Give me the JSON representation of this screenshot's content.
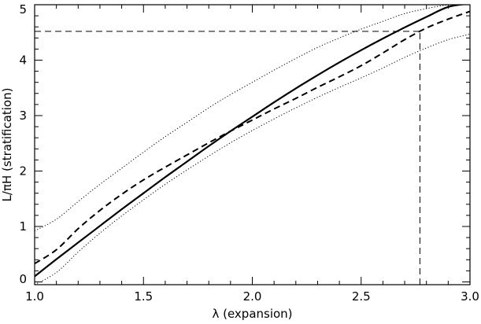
{
  "chart_data": {
    "type": "line",
    "title": "",
    "xlabel": "λ (expansion)",
    "ylabel": "L/πH (stratification)",
    "xlim": [
      1.0,
      3.0
    ],
    "ylim": [
      -0.05,
      5.0
    ],
    "x_ticks": [
      "1.0",
      "1.5",
      "2.0",
      "2.5",
      "3.0"
    ],
    "y_ticks": [
      "0",
      "1",
      "2",
      "3",
      "4",
      "5"
    ],
    "grid": false,
    "legend": "none",
    "series": [
      {
        "style": "solid",
        "x": [
          1.0,
          1.1,
          1.2,
          1.3,
          1.4,
          1.5,
          1.6,
          1.7,
          1.8,
          1.9,
          2.0,
          2.1,
          2.2,
          2.3,
          2.4,
          2.5,
          2.6,
          2.7,
          2.8,
          2.9,
          3.0
        ],
        "y": [
          0.1,
          0.41,
          0.71,
          1.01,
          1.31,
          1.6,
          1.89,
          2.17,
          2.45,
          2.72,
          2.98,
          3.24,
          3.49,
          3.73,
          3.96,
          4.18,
          4.39,
          4.59,
          4.78,
          4.96,
          5.02
        ]
      },
      {
        "style": "dashed",
        "x": [
          1.0,
          1.1,
          1.2,
          1.3,
          1.4,
          1.5,
          1.6,
          1.7,
          1.8,
          1.9,
          2.0,
          2.1,
          2.2,
          2.3,
          2.4,
          2.5,
          2.6,
          2.7,
          2.8,
          2.9,
          3.0
        ],
        "y": [
          0.33,
          0.58,
          0.96,
          1.29,
          1.58,
          1.84,
          2.07,
          2.29,
          2.51,
          2.72,
          2.92,
          3.12,
          3.31,
          3.51,
          3.7,
          3.9,
          4.13,
          4.37,
          4.58,
          4.74,
          4.88
        ]
      },
      {
        "style": "dotted",
        "x": [
          1.0,
          1.1,
          1.2,
          1.3,
          1.4,
          1.5,
          1.6,
          1.7,
          1.8,
          1.9,
          2.0,
          2.1,
          2.2,
          2.3,
          2.4,
          2.5,
          2.6,
          2.7,
          2.8,
          2.9,
          3.0
        ],
        "y": [
          0.92,
          1.13,
          1.45,
          1.76,
          2.05,
          2.34,
          2.62,
          2.88,
          3.14,
          3.38,
          3.6,
          3.82,
          4.03,
          4.23,
          4.4,
          4.56,
          4.7,
          4.84,
          4.93,
          5.0,
          5.05
        ]
      },
      {
        "style": "dotted",
        "x": [
          1.0,
          1.1,
          1.2,
          1.3,
          1.4,
          1.5,
          1.6,
          1.7,
          1.8,
          1.9,
          2.0,
          2.1,
          2.2,
          2.3,
          2.4,
          2.5,
          2.6,
          2.7,
          2.8,
          2.9,
          3.0
        ],
        "y": [
          -0.05,
          0.17,
          0.54,
          0.88,
          1.19,
          1.48,
          1.76,
          2.02,
          2.27,
          2.51,
          2.73,
          2.94,
          3.14,
          3.33,
          3.51,
          3.68,
          3.86,
          4.05,
          4.22,
          4.37,
          4.47
        ]
      }
    ],
    "reference_lines": [
      {
        "orientation": "horizontal",
        "style": "dashed",
        "value": 4.52,
        "from": 1.0,
        "to": 2.77
      },
      {
        "orientation": "vertical",
        "style": "dashed",
        "value": 2.77,
        "from": -0.05,
        "to": 4.52
      }
    ]
  }
}
